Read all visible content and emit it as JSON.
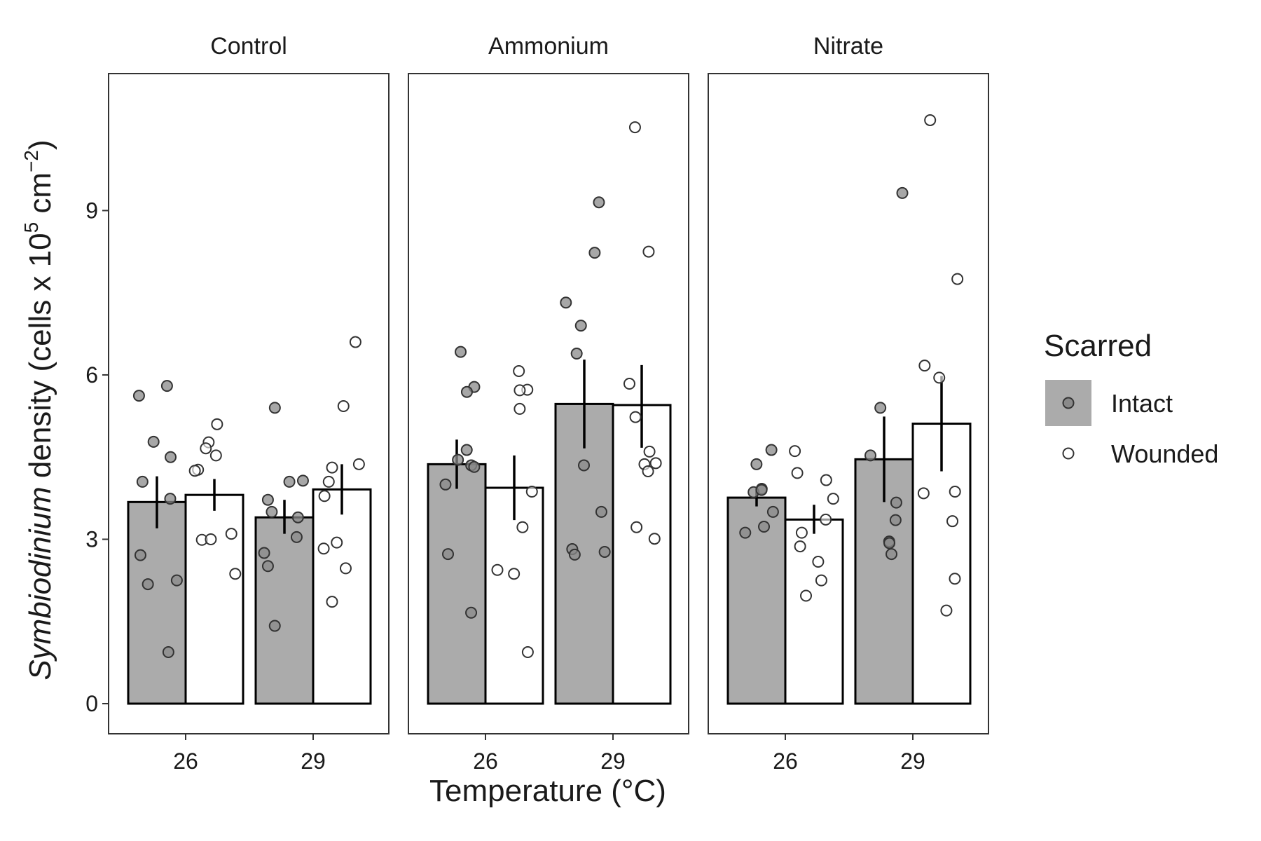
{
  "chart_data": {
    "type": "bar",
    "facets": [
      "Control",
      "Ammonium",
      "Nitrate"
    ],
    "categories": [
      "26",
      "29"
    ],
    "xlabel": "Temperature (°C)",
    "ylabel": {
      "italic": "Symbiodinium",
      "rest": " density (cells x 10",
      "sup1": "5",
      "mid": " cm",
      "sup2": "−2",
      "end": ")"
    },
    "ylim": [
      -0.55,
      11.5
    ],
    "yticks": [
      0,
      3,
      6,
      9
    ],
    "legend": {
      "title": "Scarred",
      "position": "right",
      "items": [
        {
          "label": "Intact",
          "fill": "#ababab"
        },
        {
          "label": "Wounded",
          "fill": "#ffffff"
        }
      ]
    },
    "colors": {
      "intact": "#ababab",
      "wounded": "#ffffff",
      "stroke": "#000000",
      "panel_border": "#333333"
    },
    "series": [
      {
        "name": "Intact",
        "bars": [
          {
            "facet": "Control",
            "temp": "26",
            "mean": 3.68,
            "se_low": 3.2,
            "se_high": 4.15,
            "points": [
              5.8,
              5.62,
              4.78,
              4.5,
              4.05,
              3.74,
              2.71,
              2.25,
              2.18,
              0.94
            ]
          },
          {
            "facet": "Control",
            "temp": "29",
            "mean": 3.4,
            "se_low": 3.1,
            "se_high": 3.72,
            "points": [
              5.4,
              4.07,
              4.05,
              3.72,
              3.5,
              3.4,
              3.04,
              2.75,
              2.51,
              1.42
            ]
          },
          {
            "facet": "Ammonium",
            "temp": "26",
            "mean": 4.37,
            "se_low": 3.92,
            "se_high": 4.82,
            "points": [
              6.42,
              5.78,
              5.69,
              4.63,
              4.45,
              4.35,
              4.32,
              4.0,
              2.73,
              1.66
            ]
          },
          {
            "facet": "Ammonium",
            "temp": "29",
            "mean": 5.47,
            "se_low": 4.66,
            "se_high": 6.28,
            "points": [
              9.15,
              8.23,
              7.32,
              6.9,
              6.39,
              4.35,
              3.5,
              2.82,
              2.77,
              2.72
            ]
          },
          {
            "facet": "Nitrate",
            "temp": "26",
            "mean": 3.76,
            "se_low": 3.6,
            "se_high": 3.93,
            "points": [
              4.63,
              4.37,
              3.92,
              3.86,
              3.9,
              3.5,
              3.23,
              3.12
            ]
          },
          {
            "facet": "Nitrate",
            "temp": "29",
            "mean": 4.46,
            "se_low": 3.68,
            "se_high": 5.24,
            "points": [
              9.32,
              5.4,
              4.53,
              3.67,
              3.35,
              2.96,
              2.93,
              2.73
            ]
          }
        ]
      },
      {
        "name": "Wounded",
        "bars": [
          {
            "facet": "Control",
            "temp": "26",
            "mean": 3.81,
            "se_low": 3.52,
            "se_high": 4.1,
            "points": [
              5.1,
              4.77,
              4.66,
              4.53,
              4.27,
              4.25,
              3.1,
              2.99,
              3.0,
              2.37
            ]
          },
          {
            "facet": "Control",
            "temp": "29",
            "mean": 3.91,
            "se_low": 3.45,
            "se_high": 4.37,
            "points": [
              6.6,
              5.43,
              4.37,
              4.31,
              4.05,
              3.79,
              2.94,
              2.83,
              2.47,
              1.86
            ]
          },
          {
            "facet": "Ammonium",
            "temp": "26",
            "mean": 3.94,
            "se_low": 3.35,
            "se_high": 4.53,
            "points": [
              6.07,
              5.73,
              5.72,
              5.38,
              3.87,
              3.22,
              2.44,
              2.37,
              0.94
            ]
          },
          {
            "facet": "Ammonium",
            "temp": "29",
            "mean": 5.45,
            "se_low": 4.67,
            "se_high": 6.18,
            "points": [
              10.52,
              8.25,
              5.84,
              5.23,
              4.6,
              4.39,
              4.37,
              4.24,
              3.22,
              3.01
            ]
          },
          {
            "facet": "Nitrate",
            "temp": "26",
            "mean": 3.36,
            "se_low": 3.1,
            "se_high": 3.63,
            "points": [
              4.61,
              4.21,
              4.08,
              3.74,
              3.36,
              3.12,
              2.87,
              2.59,
              2.25,
              1.97
            ]
          },
          {
            "facet": "Nitrate",
            "temp": "29",
            "mean": 5.11,
            "se_low": 4.24,
            "se_high": 5.98,
            "points": [
              10.65,
              7.75,
              6.17,
              5.95,
              3.87,
              3.84,
              3.33,
              2.28,
              1.7
            ]
          }
        ]
      }
    ]
  }
}
